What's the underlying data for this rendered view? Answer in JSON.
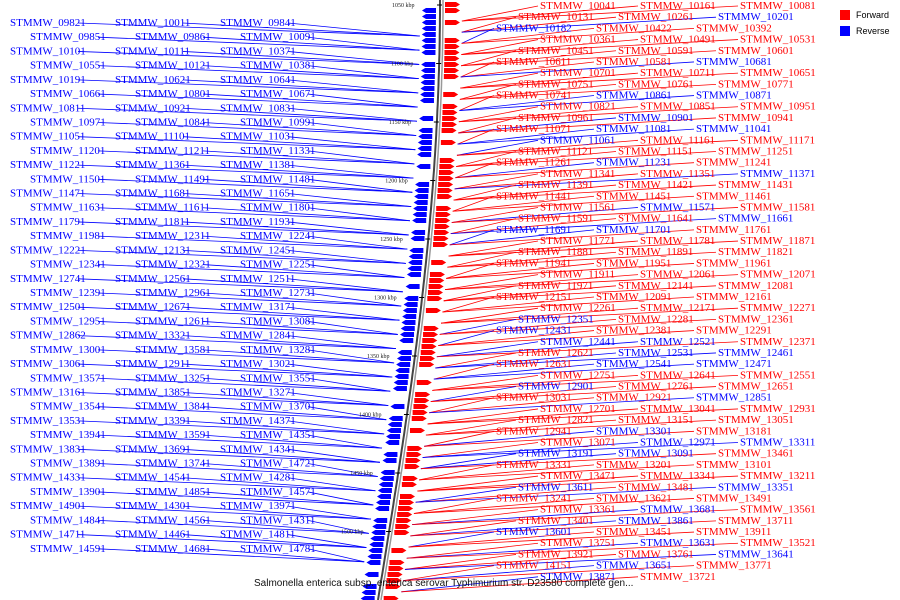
{
  "caption": "Salmonella enterica subsp. enterica serovar Typhimurium str. D23580 complete gen...",
  "legend": [
    {
      "label": "Forward",
      "color": "#ff0000"
    },
    {
      "label": "Reverse",
      "color": "#0000ff"
    }
  ],
  "colors": {
    "forward": "#ff0000",
    "reverse": "#0000ff",
    "backbone": "#000000"
  },
  "scale_ticks": [
    "1050 kbp",
    "1100 kbp",
    "1150 kbp",
    "1200 kbp",
    "1250 kbp",
    "1300 kbp",
    "1350 kbp",
    "1400 kbp",
    "1450 kbp",
    "1500 kbp"
  ],
  "left_genes": [
    "STMMW_09821",
    "STMMW_10011",
    "STMMW_09841",
    "STMMW_09851",
    "STMMW_09861",
    "STMMW_10091",
    "STMMW_10101",
    "STMMW_10111",
    "STMMW_10371",
    "STMMW_10551",
    "STMMW_10121",
    "STMMW_10381",
    "STMMW_10191",
    "STMMW_10621",
    "STMMW_10641",
    "STMMW_10661",
    "STMMW_10801",
    "STMMW_10671",
    "STMMW_10811",
    "STMMW_10921",
    "STMMW_10831",
    "STMMW_10971",
    "STMMW_10841",
    "STMMW_10991",
    "STMMW_11051",
    "STMMW_11101",
    "STMMW_11031",
    "STMMW_11201",
    "STMMW_11211",
    "STMMW_11331",
    "STMMW_11221",
    "STMMW_11361",
    "STMMW_11381",
    "STMMW_11501",
    "STMMW_11491",
    "STMMW_11481",
    "STMMW_11471",
    "STMMW_11681",
    "STMMW_11651",
    "STMMW_11631",
    "STMMW_11611",
    "STMMW_11801",
    "STMMW_11791",
    "STMMW_11811",
    "STMMW_11931",
    "STMMW_11981",
    "STMMW_12311",
    "STMMW_12241",
    "STMMW_12221",
    "STMMW_12131",
    "STMMW_12451",
    "STMMW_12341",
    "STMMW_12321",
    "STMMW_12251",
    "STMMW_12741",
    "STMMW_12561",
    "STMMW_12511",
    "STMMW_12391",
    "STMMW_12961",
    "STMMW_12731",
    "STMMW_12501",
    "STMMW_12671",
    "STMMW_13171",
    "STMMW_12951",
    "STMMW_12611",
    "STMMW_13081",
    "STMMW_12862",
    "STMMW_13321",
    "STMMW_12841",
    "STMMW_13001",
    "STMMW_13581",
    "STMMW_13281",
    "STMMW_13061",
    "STMMW_12911",
    "STMMW_13021",
    "STMMW_13571",
    "STMMW_13251",
    "STMMW_13551",
    "STMMW_13161",
    "STMMW_13851",
    "STMMW_13271",
    "STMMW_13541",
    "STMMW_13841",
    "STMMW_13701",
    "STMMW_13531",
    "STMMW_13391",
    "STMMW_14371",
    "STMMW_13941",
    "STMMW_13591",
    "STMMW_14351",
    "STMMW_13831",
    "STMMW_13691",
    "STMMW_14341",
    "STMMW_13891",
    "STMMW_13741",
    "STMMW_14721",
    "STMMW_14331",
    "STMMW_14541",
    "STMMW_14281",
    "STMMW_13901",
    "STMMW_14851",
    "STMMW_14571",
    "STMMW_14901",
    "STMMW_14301",
    "STMMW_13971",
    "STMMW_14841",
    "STMMW_14561",
    "STMMW_14311",
    "STMMW_14711",
    "STMMW_14461",
    "STMMW_14811",
    "STMMW_14591",
    "STMMW_14681",
    "STMMW_14781"
  ],
  "right_genes": [
    {
      "label": "STMMW_10041",
      "strand": "forward"
    },
    {
      "label": "STMMW_10161",
      "strand": "forward"
    },
    {
      "label": "STMMW_10081",
      "strand": "forward"
    },
    {
      "label": "STMMW_10131",
      "strand": "forward"
    },
    {
      "label": "STMMW_10261",
      "strand": "forward"
    },
    {
      "label": "STMMW_10201",
      "strand": "reverse"
    },
    {
      "label": "STMMW_10182",
      "strand": "reverse"
    },
    {
      "label": "STMMW_10422",
      "strand": "forward"
    },
    {
      "label": "STMMW_10392",
      "strand": "forward"
    },
    {
      "label": "STMMW_10361",
      "strand": "forward"
    },
    {
      "label": "STMMW_10491",
      "strand": "forward"
    },
    {
      "label": "STMMW_10531",
      "strand": "forward"
    },
    {
      "label": "STMMW_10451",
      "strand": "forward"
    },
    {
      "label": "STMMW_10591",
      "strand": "forward"
    },
    {
      "label": "STMMW_10601",
      "strand": "forward"
    },
    {
      "label": "STMMW_10611",
      "strand": "forward"
    },
    {
      "label": "STMMW_10581",
      "strand": "forward"
    },
    {
      "label": "STMMW_10681",
      "strand": "reverse"
    },
    {
      "label": "STMMW_10701",
      "strand": "forward"
    },
    {
      "label": "STMMW_10711",
      "strand": "forward"
    },
    {
      "label": "STMMW_10651",
      "strand": "forward"
    },
    {
      "label": "STMMW_10751",
      "strand": "forward"
    },
    {
      "label": "STMMW_10761",
      "strand": "forward"
    },
    {
      "label": "STMMW_10771",
      "strand": "forward"
    },
    {
      "label": "STMMW_10741",
      "strand": "forward"
    },
    {
      "label": "STMMW_10861",
      "strand": "reverse"
    },
    {
      "label": "STMMW_10871",
      "strand": "reverse"
    },
    {
      "label": "STMMW_10821",
      "strand": "forward"
    },
    {
      "label": "STMMW_10851",
      "strand": "forward"
    },
    {
      "label": "STMMW_10951",
      "strand": "forward"
    },
    {
      "label": "STMMW_10961",
      "strand": "forward"
    },
    {
      "label": "STMMW_10901",
      "strand": "reverse"
    },
    {
      "label": "STMMW_10941",
      "strand": "forward"
    },
    {
      "label": "STMMW_11071",
      "strand": "forward"
    },
    {
      "label": "STMMW_11081",
      "strand": "reverse"
    },
    {
      "label": "STMMW_11041",
      "strand": "reverse"
    },
    {
      "label": "STMMW_11061",
      "strand": "reverse"
    },
    {
      "label": "STMMW_11161",
      "strand": "forward"
    },
    {
      "label": "STMMW_11171",
      "strand": "forward"
    },
    {
      "label": "STMMW_11121",
      "strand": "forward"
    },
    {
      "label": "STMMW_11151",
      "strand": "forward"
    },
    {
      "label": "STMMW_11251",
      "strand": "forward"
    },
    {
      "label": "STMMW_11261",
      "strand": "forward"
    },
    {
      "label": "STMMW_11231",
      "strand": "reverse"
    },
    {
      "label": "STMMW_11241",
      "strand": "forward"
    },
    {
      "label": "STMMW_11341",
      "strand": "forward"
    },
    {
      "label": "STMMW_11351",
      "strand": "forward"
    },
    {
      "label": "STMMW_11371",
      "strand": "reverse"
    },
    {
      "label": "STMMW_11391",
      "strand": "forward"
    },
    {
      "label": "STMMW_11421",
      "strand": "forward"
    },
    {
      "label": "STMMW_11431",
      "strand": "forward"
    },
    {
      "label": "STMMW_11441",
      "strand": "forward"
    },
    {
      "label": "STMMW_11451",
      "strand": "forward"
    },
    {
      "label": "STMMW_11461",
      "strand": "forward"
    },
    {
      "label": "STMMW_11561",
      "strand": "forward"
    },
    {
      "label": "STMMW_11571",
      "strand": "reverse"
    },
    {
      "label": "STMMW_11581",
      "strand": "forward"
    },
    {
      "label": "STMMW_11591",
      "strand": "forward"
    },
    {
      "label": "STMMW_11641",
      "strand": "forward"
    },
    {
      "label": "STMMW_11661",
      "strand": "reverse"
    },
    {
      "label": "STMMW_11691",
      "strand": "reverse"
    },
    {
      "label": "STMMW_11701",
      "strand": "reverse"
    },
    {
      "label": "STMMW_11761",
      "strand": "forward"
    },
    {
      "label": "STMMW_11771",
      "strand": "forward"
    },
    {
      "label": "STMMW_11781",
      "strand": "forward"
    },
    {
      "label": "STMMW_11871",
      "strand": "forward"
    },
    {
      "label": "STMMW_11881",
      "strand": "forward"
    },
    {
      "label": "STMMW_11891",
      "strand": "forward"
    },
    {
      "label": "STMMW_11821",
      "strand": "forward"
    },
    {
      "label": "STMMW_11941",
      "strand": "forward"
    },
    {
      "label": "STMMW_11951",
      "strand": "forward"
    },
    {
      "label": "STMMW_11961",
      "strand": "forward"
    },
    {
      "label": "STMMW_11911",
      "strand": "forward"
    },
    {
      "label": "STMMW_12061",
      "strand": "forward"
    },
    {
      "label": "STMMW_12071",
      "strand": "forward"
    },
    {
      "label": "STMMW_11971",
      "strand": "forward"
    },
    {
      "label": "STMMW_12141",
      "strand": "forward"
    },
    {
      "label": "STMMW_12081",
      "strand": "forward"
    },
    {
      "label": "STMMW_12151",
      "strand": "forward"
    },
    {
      "label": "STMMW_12091",
      "strand": "forward"
    },
    {
      "label": "STMMW_12161",
      "strand": "forward"
    },
    {
      "label": "STMMW_12261",
      "strand": "forward"
    },
    {
      "label": "STMMW_12171",
      "strand": "forward"
    },
    {
      "label": "STMMW_12271",
      "strand": "forward"
    },
    {
      "label": "STMMW_12351",
      "strand": "reverse"
    },
    {
      "label": "STMMW_12281",
      "strand": "forward"
    },
    {
      "label": "STMMW_12361",
      "strand": "forward"
    },
    {
      "label": "STMMW_12431",
      "strand": "reverse"
    },
    {
      "label": "STMMW_12381",
      "strand": "forward"
    },
    {
      "label": "STMMW_12291",
      "strand": "forward"
    },
    {
      "label": "STMMW_12441",
      "strand": "reverse"
    },
    {
      "label": "STMMW_12521",
      "strand": "reverse"
    },
    {
      "label": "STMMW_12371",
      "strand": "forward"
    },
    {
      "label": "STMMW_12621",
      "strand": "forward"
    },
    {
      "label": "STMMW_12531",
      "strand": "reverse"
    },
    {
      "label": "STMMW_12461",
      "strand": "reverse"
    },
    {
      "label": "STMMW_12631",
      "strand": "forward"
    },
    {
      "label": "STMMW_12541",
      "strand": "reverse"
    },
    {
      "label": "STMMW_12471",
      "strand": "reverse"
    },
    {
      "label": "STMMW_12751",
      "strand": "forward"
    },
    {
      "label": "STMMW_12641",
      "strand": "forward"
    },
    {
      "label": "STMMW_12551",
      "strand": "forward"
    },
    {
      "label": "STMMW_12901",
      "strand": "reverse"
    },
    {
      "label": "STMMW_12761",
      "strand": "forward"
    },
    {
      "label": "STMMW_12651",
      "strand": "forward"
    },
    {
      "label": "STMMW_13031",
      "strand": "forward"
    },
    {
      "label": "STMMW_12921",
      "strand": "forward"
    },
    {
      "label": "STMMW_12851",
      "strand": "reverse"
    },
    {
      "label": "STMMW_12701",
      "strand": "forward"
    },
    {
      "label": "STMMW_13041",
      "strand": "forward"
    },
    {
      "label": "STMMW_12931",
      "strand": "forward"
    },
    {
      "label": "STMMW_12821",
      "strand": "forward"
    },
    {
      "label": "STMMW_13151",
      "strand": "forward"
    },
    {
      "label": "STMMW_13051",
      "strand": "forward"
    },
    {
      "label": "STMMW_12941",
      "strand": "forward"
    },
    {
      "label": "STMMW_13301",
      "strand": "reverse"
    },
    {
      "label": "STMMW_13181",
      "strand": "forward"
    },
    {
      "label": "STMMW_13071",
      "strand": "forward"
    },
    {
      "label": "STMMW_12971",
      "strand": "reverse"
    },
    {
      "label": "STMMW_13311",
      "strand": "reverse"
    },
    {
      "label": "STMMW_13191",
      "strand": "reverse"
    },
    {
      "label": "STMMW_13091",
      "strand": "reverse"
    },
    {
      "label": "STMMW_13461",
      "strand": "forward"
    },
    {
      "label": "STMMW_13331",
      "strand": "forward"
    },
    {
      "label": "STMMW_13201",
      "strand": "forward"
    },
    {
      "label": "STMMW_13101",
      "strand": "forward"
    },
    {
      "label": "STMMW_13471",
      "strand": "forward"
    },
    {
      "label": "STMMW_13341",
      "strand": "forward"
    },
    {
      "label": "STMMW_13211",
      "strand": "forward"
    },
    {
      "label": "STMMW_13611",
      "strand": "reverse"
    },
    {
      "label": "STMMW_13481",
      "strand": "forward"
    },
    {
      "label": "STMMW_13351",
      "strand": "reverse"
    },
    {
      "label": "STMMW_13241",
      "strand": "forward"
    },
    {
      "label": "STMMW_13621",
      "strand": "forward"
    },
    {
      "label": "STMMW_13491",
      "strand": "forward"
    },
    {
      "label": "STMMW_13361",
      "strand": "forward"
    },
    {
      "label": "STMMW_13681",
      "strand": "reverse"
    },
    {
      "label": "STMMW_13561",
      "strand": "forward"
    },
    {
      "label": "STMMW_13401",
      "strand": "forward"
    },
    {
      "label": "STMMW_13861",
      "strand": "reverse"
    },
    {
      "label": "STMMW_13711",
      "strand": "forward"
    },
    {
      "label": "STMMW_13601",
      "strand": "reverse"
    },
    {
      "label": "STMMW_13451",
      "strand": "forward"
    },
    {
      "label": "STMMW_13911",
      "strand": "forward"
    },
    {
      "label": "STMMW_13751",
      "strand": "forward"
    },
    {
      "label": "STMMW_13631",
      "strand": "reverse"
    },
    {
      "label": "STMMW_13521",
      "strand": "forward"
    },
    {
      "label": "STMMW_13921",
      "strand": "forward"
    },
    {
      "label": "STMMW_13761",
      "strand": "forward"
    },
    {
      "label": "STMMW_13641",
      "strand": "reverse"
    },
    {
      "label": "STMMW_14151",
      "strand": "forward"
    },
    {
      "label": "STMMW_13651",
      "strand": "reverse"
    },
    {
      "label": "STMMW_13771",
      "strand": "forward"
    },
    {
      "label": "STMMW_13871",
      "strand": "reverse"
    },
    {
      "label": "STMMW_13721",
      "strand": "forward"
    }
  ]
}
